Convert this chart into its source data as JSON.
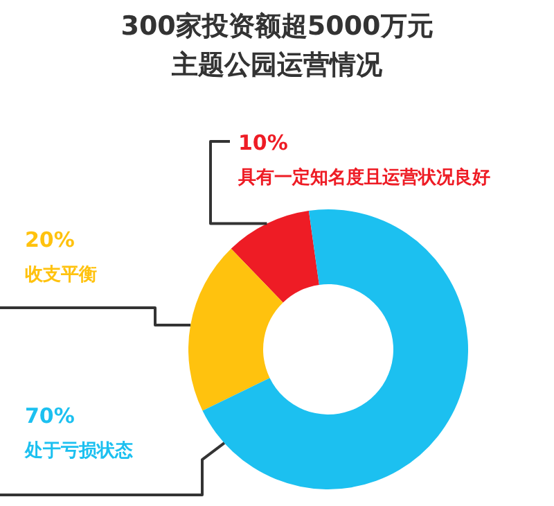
{
  "chart_data": {
    "type": "donut",
    "title": "300家投资额超5000万元",
    "subtitle": "主题公园运营情况",
    "categories": [
      "具有一定知名度且运营状况良好",
      "收支平衡",
      "处于亏损状态"
    ],
    "values": [
      10,
      20,
      70
    ],
    "colors": [
      "#ee1c25",
      "#ffc20e",
      "#1cc0f0"
    ],
    "value_labels": [
      "10%",
      "20%",
      "70%"
    ]
  }
}
